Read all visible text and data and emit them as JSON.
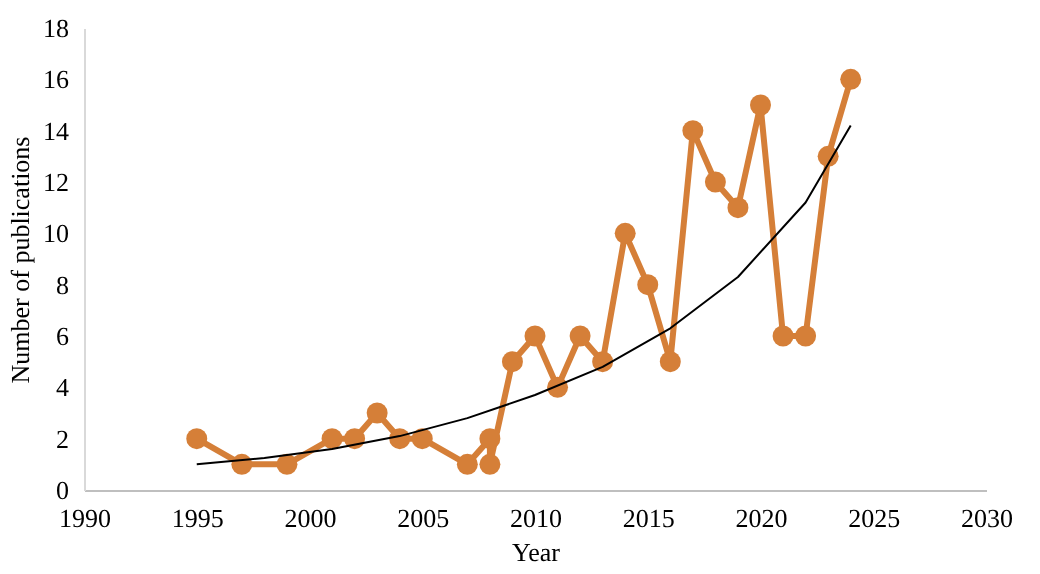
{
  "chart_data": {
    "type": "line",
    "xlabel": "Year",
    "ylabel": "Number of publications",
    "xlim": [
      1990,
      2030
    ],
    "xticks": [
      1990,
      1995,
      2000,
      2005,
      2010,
      2015,
      2020,
      2025,
      2030
    ],
    "ylim": [
      0,
      18
    ],
    "yticks": [
      0,
      2,
      4,
      6,
      8,
      10,
      12,
      14,
      16,
      18
    ],
    "grid": false,
    "marker": "circle",
    "line_style": "solid",
    "series": [
      {
        "color": "#d57f38",
        "x": [
          1995,
          1997,
          1999,
          2001,
          2002,
          2003,
          2004,
          2005,
          2007,
          2008,
          2008,
          2009,
          2010,
          2011,
          2012,
          2013,
          2014,
          2015,
          2016,
          2017,
          2018,
          2019,
          2020,
          2021,
          2022,
          2023,
          2024
        ],
        "values": [
          2,
          1,
          1,
          2,
          2,
          3,
          2,
          2,
          1,
          2,
          1,
          5,
          6,
          4,
          6,
          5,
          10,
          8,
          5,
          14,
          12,
          11,
          15,
          6,
          6,
          13,
          16
        ]
      },
      {
        "type": "line",
        "color": "#000000",
        "marker": "none",
        "x": [
          1995,
          1998,
          2001,
          2004,
          2007,
          2010,
          2013,
          2016,
          2019,
          2022,
          2024
        ],
        "values": [
          1.0,
          1.25,
          1.6,
          2.1,
          2.8,
          3.7,
          4.8,
          6.3,
          8.3,
          11.2,
          14.2
        ]
      }
    ]
  }
}
